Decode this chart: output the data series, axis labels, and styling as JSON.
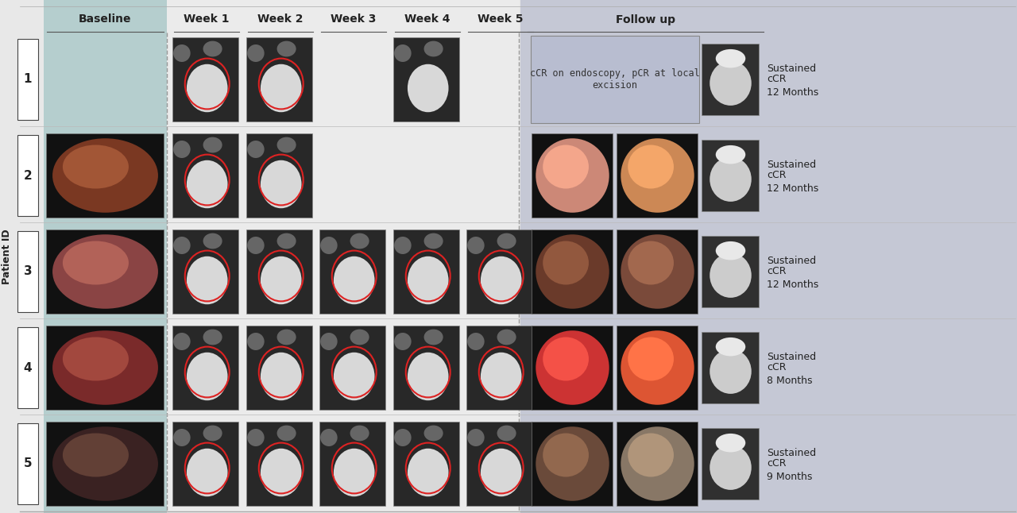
{
  "patients": [
    1,
    2,
    3,
    4,
    5
  ],
  "col_headers": [
    "Baseline",
    "Week 1",
    "Week 2",
    "Week 3",
    "Week 4",
    "Week 5",
    "Follow up"
  ],
  "followup_labels": [
    {
      "line1": "Sustained",
      "line2": "cCR",
      "line3": "12 Months"
    },
    {
      "line1": "Sustained",
      "line2": "cCR",
      "line3": "12 Months"
    },
    {
      "line1": "Sustained",
      "line2": "cCR",
      "line3": "12 Months"
    },
    {
      "line1": "Sustained",
      "line2": "cCR",
      "line3": "8 Months"
    },
    {
      "line1": "Sustained",
      "line2": "cCR",
      "line3": "9 Months"
    }
  ],
  "patient1_text": "cCR on endoscopy, pCR at local\nexcision",
  "bg_color": "#e8e8e8",
  "baseline_bg": "#b5cece",
  "followup_bg": "#c5c8d5",
  "week_bg": "#eeeeee",
  "text_color": "#222222",
  "dashed_line_color": "#999999",
  "ylabel": "Patient ID",
  "header_fontsize": 10,
  "followup_text_fontsize": 9,
  "mri_presence": [
    [
      1,
      1,
      0,
      1,
      0
    ],
    [
      1,
      1,
      0,
      0,
      0
    ],
    [
      1,
      1,
      1,
      1,
      1
    ],
    [
      1,
      1,
      1,
      1,
      1
    ],
    [
      1,
      1,
      1,
      1,
      1
    ]
  ],
  "baseline_colors": [
    "#000000",
    "#7a3822",
    "#8a4444",
    "#7a2a2a",
    "#3a2222"
  ],
  "followup_endo1_colors": [
    "#cc8877",
    "#6a3a2a",
    "#cc3333",
    "#6a4a3a"
  ],
  "followup_endo2_colors": [
    "#cc8855",
    "#7a4a3a",
    "#dd5533",
    "#887766"
  ],
  "patient1_box_color": "#b8bdd0",
  "patient1_box_border": "#888888"
}
